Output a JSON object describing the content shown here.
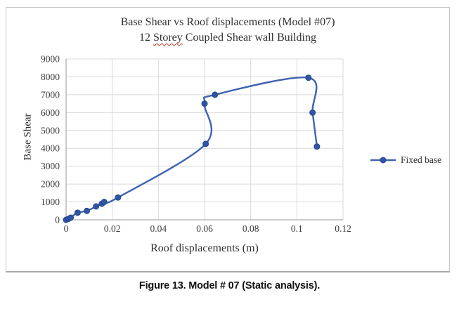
{
  "chart": {
    "title_line1": "Base Shear vs Roof displacements (Model #07)",
    "title_line2_prefix": "12 ",
    "title_line2_word": "Storey",
    "title_line2_suffix": " Coupled Shear wall Building",
    "ylabel": "Base Shear",
    "xlabel": "Roof displacements (m)",
    "legend_label": "Fixed base"
  },
  "figure": {
    "caption_label": "Figure 13.",
    "caption_text": " Model # 07 (Static analysis)."
  },
  "chart_data": {
    "type": "line",
    "title": "Base Shear vs Roof displacements (Model #07)",
    "subtitle": "12 Storey Coupled Shear wall Building",
    "xlabel": "Roof displacements (m)",
    "ylabel": "Base Shear",
    "xlim": [
      0,
      0.12
    ],
    "ylim": [
      0,
      9000
    ],
    "grid": true,
    "smooth": true,
    "legend_position": "right",
    "x_ticks": {
      "values": [
        0,
        0.02,
        0.04,
        0.06,
        0.08,
        0.1,
        0.12
      ],
      "labels": [
        "0",
        "0.02",
        "0.04",
        "0.06",
        "0.08",
        "0.1",
        "0.12"
      ]
    },
    "y_ticks": {
      "values": [
        0,
        1000,
        2000,
        3000,
        4000,
        5000,
        6000,
        7000,
        8000,
        9000
      ],
      "labels": [
        "0",
        "1000",
        "2000",
        "3000",
        "4000",
        "5000",
        "6000",
        "7000",
        "8000",
        "9000"
      ]
    },
    "colors": {
      "line": "#3f63b2",
      "marker_fill": "#2f56a5",
      "marker_edge": "#27478c",
      "gridline": "#d9d9d9",
      "axis": "#9a9a9a",
      "tick_text": "#3d3d3d"
    },
    "series": [
      {
        "name": "Fixed base",
        "points": [
          [
            0,
            0
          ],
          [
            0.001,
            50
          ],
          [
            0.002,
            120
          ],
          [
            0.005,
            400
          ],
          [
            0.009,
            500
          ],
          [
            0.013,
            750
          ],
          [
            0.0155,
            900
          ],
          [
            0.0165,
            1000
          ],
          [
            0.0225,
            1250
          ],
          [
            0.0605,
            4250
          ],
          [
            0.06,
            6500
          ],
          [
            0.0645,
            7000
          ],
          [
            0.105,
            7950
          ],
          [
            0.1068,
            6000
          ],
          [
            0.1087,
            4100
          ]
        ]
      }
    ]
  }
}
